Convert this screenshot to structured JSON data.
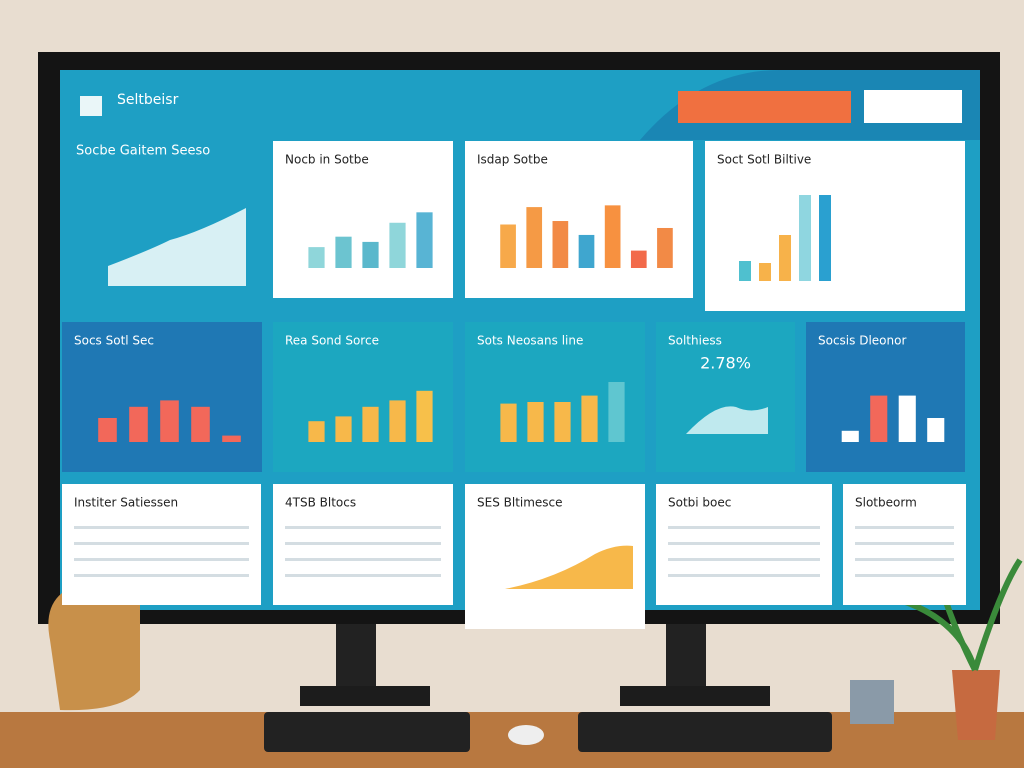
{
  "header": {
    "title": "Seltbeisr",
    "intro": "Socbe Gaitem Seeso"
  },
  "panels": [
    {
      "title": "Nocb in Sotbe",
      "values": [
        24,
        36,
        30,
        52,
        64
      ],
      "colors": [
        "#8fd6da",
        "#6cc4d0",
        "#5ab8cc",
        "#8fd6da",
        "#58b4d4"
      ]
    },
    {
      "title": "Isdap Sotbe",
      "values": [
        50,
        70,
        54,
        38,
        72,
        20,
        46
      ],
      "colors": [
        "#f7a94a",
        "#f59a45",
        "#f28a46",
        "#3fa6cf",
        "#f79140",
        "#f26a4a",
        "#f28a46"
      ]
    },
    {
      "title": "Soct Sotl Biltive",
      "values": [
        20,
        18,
        46,
        86,
        86
      ],
      "colors": [
        "#4fc0cf",
        "#f7b24a",
        "#f7b24a",
        "#8fd6e0",
        "#2aa0d0"
      ]
    },
    {
      "title": "Socs Sotl Sec",
      "values": [
        30,
        44,
        52,
        44,
        8
      ],
      "colors": [
        "#f2685a",
        "#f2685a",
        "#f2685a",
        "#f2685a",
        "#f2685a"
      ]
    },
    {
      "title": "Rea Sond Sorce",
      "values": [
        26,
        32,
        44,
        52,
        64
      ],
      "colors": [
        "#f7b84a",
        "#f7b84a",
        "#f7b84a",
        "#f7b84a",
        "#f7c04a"
      ]
    },
    {
      "title": "Sots Neosans line",
      "values": [
        48,
        50,
        50,
        58,
        75
      ],
      "colors": [
        "#f7b84a",
        "#f7b84a",
        "#f7b84a",
        "#f7b84a",
        "#5fc6d0"
      ]
    },
    {
      "title": "Solthiess",
      "big": "2.78%"
    },
    {
      "title": "Socsis Dleonor",
      "values": [
        14,
        58,
        58,
        30
      ],
      "colors": [
        "#ffffff",
        "#f2685a",
        "#ffffff",
        "#ffffff"
      ]
    },
    {
      "title": "Institer Satiessen"
    },
    {
      "title": "4TSB Bltocs"
    },
    {
      "title": "SES Bltimesce"
    },
    {
      "title": "Sotbi boec"
    },
    {
      "title": "Slotbeorm"
    }
  ]
}
